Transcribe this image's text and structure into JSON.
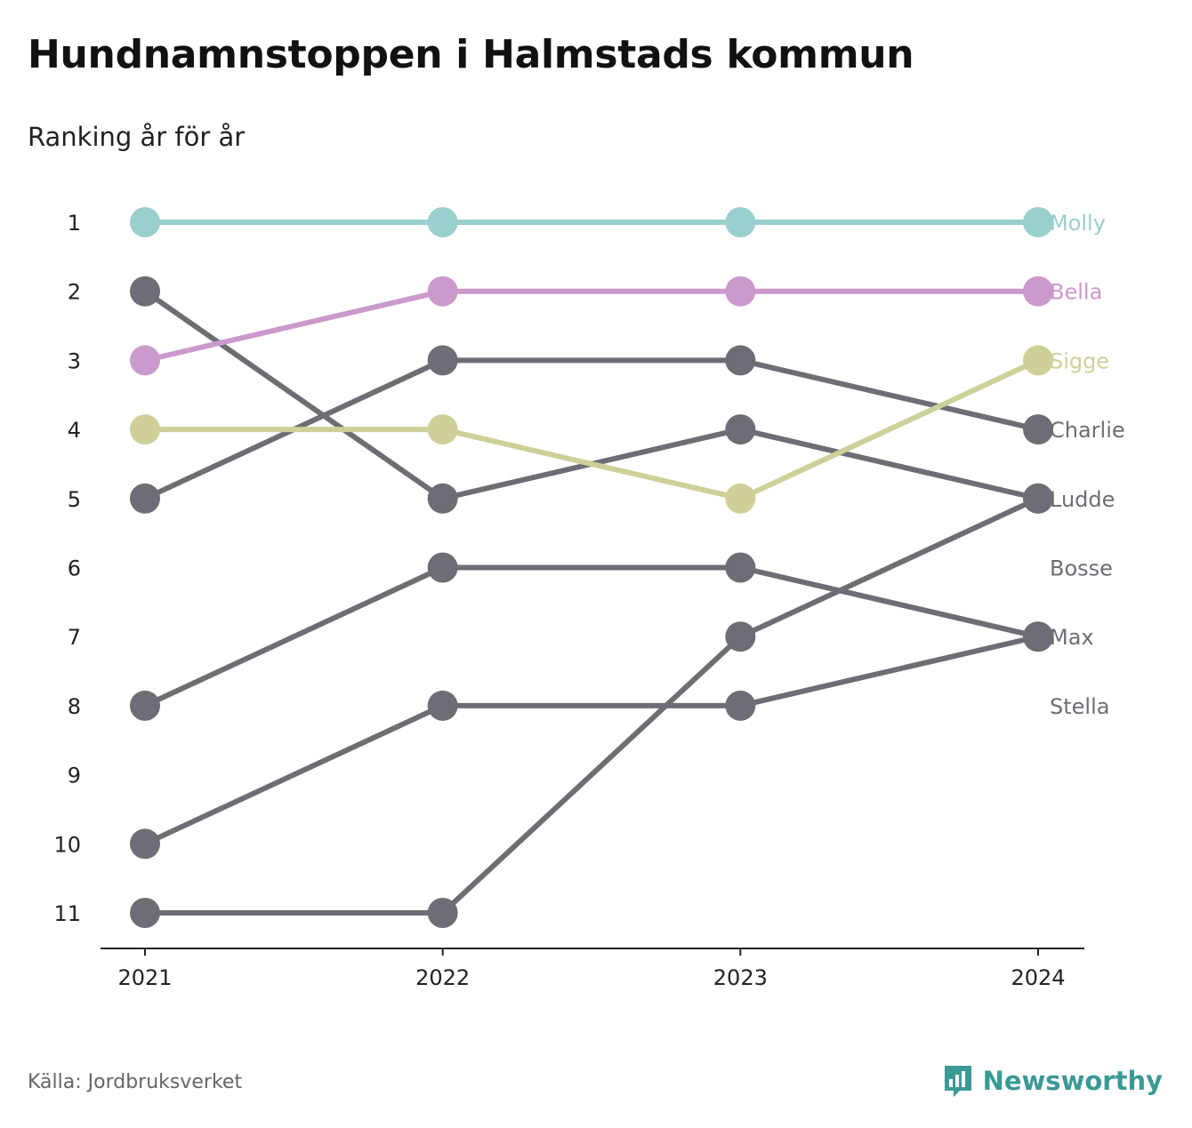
{
  "header": {
    "title": "Hundnamnstoppen i Halmstads kommun",
    "subtitle": "Ranking år för år"
  },
  "footer": {
    "source": "Källa: Jordbruksverket",
    "brand": "Newsworthy",
    "brand_icon": "bar-chart-speech-bubble-icon"
  },
  "colors": {
    "Molly": "#99cfcd",
    "Bella": "#cc99cc",
    "Sigge": "#cfcf99",
    "default": "#6e6d75",
    "brand": "#3a9a95"
  },
  "chart_data": {
    "type": "line",
    "title": "Hundnamnstoppen i Halmstads kommun",
    "subtitle": "Ranking år för år",
    "x": [
      "2021",
      "2022",
      "2023",
      "2024"
    ],
    "y_ticks": [
      "1",
      "2",
      "3",
      "4",
      "5",
      "6",
      "7",
      "8",
      "9",
      "10",
      "11"
    ],
    "ylim": [
      1,
      11
    ],
    "y_reversed": true,
    "grid": false,
    "legend": "direct labels at right end",
    "series": [
      {
        "name": "Molly",
        "values": [
          1,
          1,
          1,
          1
        ]
      },
      {
        "name": "Bella",
        "values": [
          3,
          2,
          2,
          2
        ]
      },
      {
        "name": "Sigge",
        "values": [
          4,
          4,
          5,
          3
        ]
      },
      {
        "name": "Charlie",
        "values": [
          5,
          3,
          3,
          4
        ]
      },
      {
        "name": "Ludde",
        "values": [
          2,
          5,
          4,
          5
        ]
      },
      {
        "name": "Bosse",
        "values": [
          8,
          6,
          6,
          7
        ]
      },
      {
        "name": "Max",
        "values": [
          10,
          8,
          8,
          7
        ]
      },
      {
        "name": "Stella",
        "values": [
          11,
          11,
          7,
          5
        ]
      }
    ],
    "end_labels": [
      {
        "text": "Molly",
        "rank": 1,
        "series": "Molly"
      },
      {
        "text": "Bella",
        "rank": 2,
        "series": "Bella"
      },
      {
        "text": "Sigge",
        "rank": 3,
        "series": "Sigge"
      },
      {
        "text": "Charlie",
        "rank": 4,
        "series": "Charlie"
      },
      {
        "text": "Ludde",
        "rank": 5,
        "series": "Ludde"
      },
      {
        "text": "Bosse",
        "rank": 6,
        "series": "Bosse"
      },
      {
        "text": "Max",
        "rank": 7,
        "series": "Max"
      },
      {
        "text": "Stella",
        "rank": 8,
        "series": "Stella"
      }
    ]
  }
}
